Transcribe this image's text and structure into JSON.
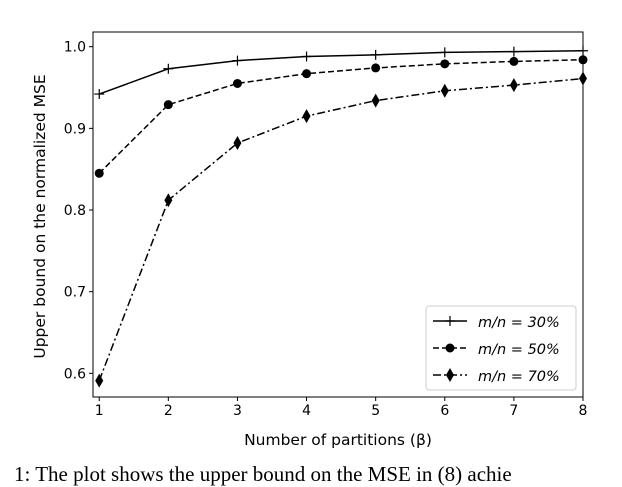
{
  "chart_data": {
    "type": "line",
    "title": "",
    "xlabel": "Number of partitions (β)",
    "ylabel": "Upper bound on the normalized MSE",
    "xlim": [
      0.91,
      8
    ],
    "ylim": [
      0.571,
      1.018
    ],
    "x": [
      1,
      2,
      3,
      4,
      5,
      6,
      7,
      8
    ],
    "xticks": [
      "1",
      "2",
      "3",
      "4",
      "5",
      "6",
      "7",
      "8"
    ],
    "yticks": [
      0.6,
      0.7,
      0.8,
      0.9,
      1.0
    ],
    "ytick_labels": [
      "0.6",
      "0.7",
      "0.8",
      "0.9",
      "1.0"
    ],
    "grid": false,
    "legend_position": "bottom-right",
    "series": [
      {
        "name": "m/n = 30%",
        "style": "solid",
        "marker": "plus",
        "color": "#000000",
        "values": [
          0.942,
          0.973,
          0.983,
          0.988,
          0.99,
          0.993,
          0.994,
          0.995
        ]
      },
      {
        "name": "m/n = 50%",
        "style": "dashed",
        "marker": "circle",
        "color": "#000000",
        "values": [
          0.845,
          0.929,
          0.955,
          0.967,
          0.974,
          0.979,
          0.982,
          0.984
        ]
      },
      {
        "name": "m/n = 70%",
        "style": "dashdot",
        "marker": "diamond",
        "color": "#000000",
        "values": [
          0.591,
          0.812,
          0.882,
          0.915,
          0.934,
          0.946,
          0.953,
          0.961
        ]
      }
    ]
  },
  "caption": "1: The plot shows the upper bound on the MSE in (8) achie"
}
